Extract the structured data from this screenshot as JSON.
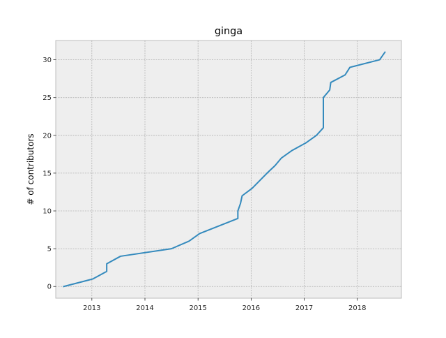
{
  "chart_data": {
    "type": "line",
    "title": "ginga",
    "xlabel": "",
    "ylabel": "# of contributors",
    "xlim": [
      2012.32,
      2018.83
    ],
    "ylim": [
      -1.55,
      32.55
    ],
    "x_ticks": [
      2013,
      2014,
      2015,
      2016,
      2017,
      2018
    ],
    "x_tick_labels": [
      "2013",
      "2014",
      "2015",
      "2016",
      "2017",
      "2018"
    ],
    "y_ticks": [
      0,
      5,
      10,
      15,
      20,
      25,
      30
    ],
    "y_tick_labels": [
      "0",
      "5",
      "10",
      "15",
      "20",
      "25",
      "30"
    ],
    "grid": true,
    "legend": "none",
    "colors": {
      "line": "#348abd",
      "plot_background": "#eeeeee",
      "grid": "#b2b2b2",
      "spine": "#bcbcbc"
    },
    "series": [
      {
        "x": [
          2012.47,
          2013.02,
          2013.28,
          2013.28,
          2013.54,
          2014.5,
          2014.83,
          2015.03,
          2015.75,
          2015.75,
          2015.8,
          2015.83,
          2016.02,
          2016.3,
          2016.45,
          2016.57,
          2016.77,
          2017.03,
          2017.23,
          2017.36,
          2017.36,
          2017.48,
          2017.5,
          2017.77,
          2017.86,
          2018.42,
          2018.52
        ],
        "y": [
          0,
          1,
          2,
          3,
          4,
          5,
          6,
          7,
          9,
          10,
          11,
          12,
          13,
          15,
          16,
          17,
          18,
          19,
          20,
          21,
          25,
          26,
          27,
          28,
          29,
          30,
          31
        ]
      }
    ]
  }
}
